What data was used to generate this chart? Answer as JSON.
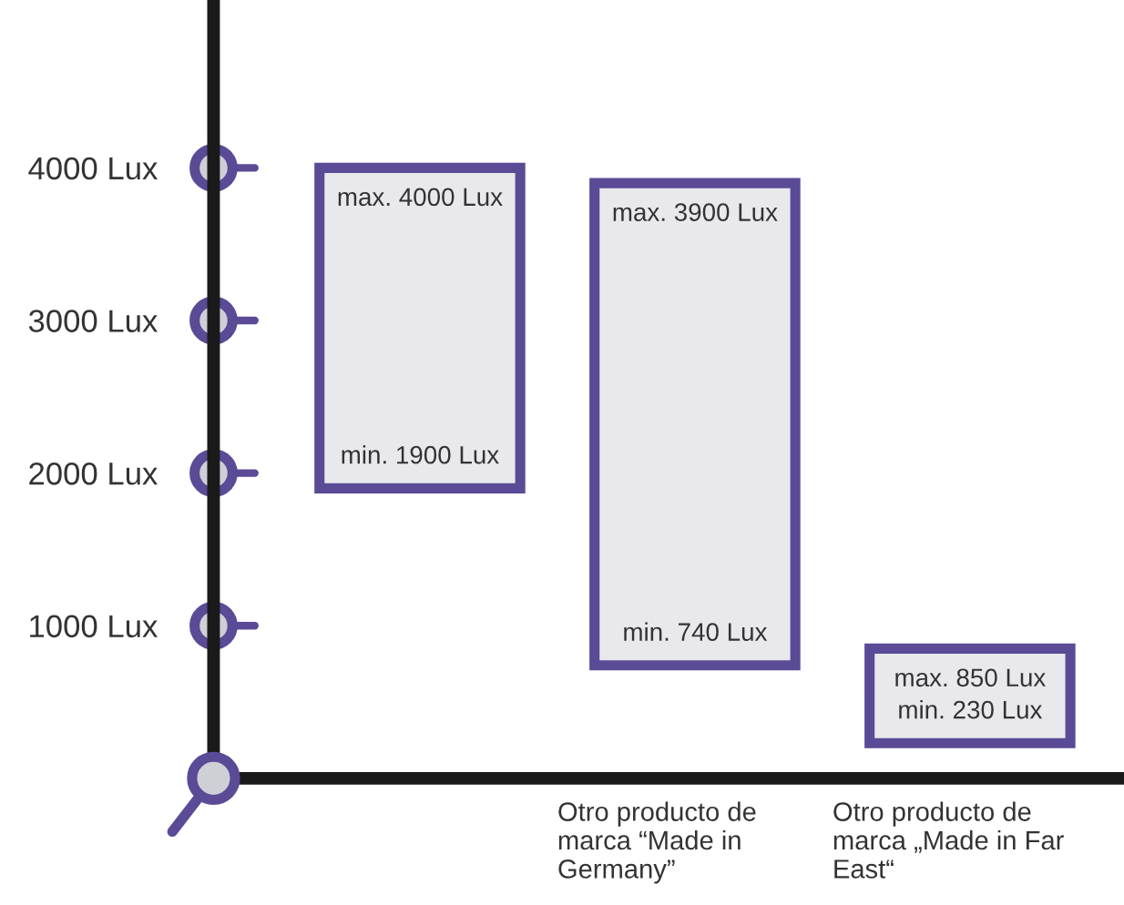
{
  "chart_data": {
    "type": "bar",
    "categories": [
      null,
      "Otro producto de\nmarca “Made in\nGermany”",
      "Otro producto de\nmarca „Made in Far\nEast“"
    ],
    "base": [
      1900,
      740,
      230
    ],
    "values": [
      2100,
      3160,
      620
    ],
    "color": "#e9e9ed",
    "ylim": [
      0,
      5100
    ],
    "yticks": [
      {
        "value": 1000,
        "label": "1000 Lux"
      },
      {
        "value": 2000,
        "label": "2000 Lux"
      },
      {
        "value": 3000,
        "label": "3000 Lux"
      },
      {
        "value": 4000,
        "label": "4000 Lux"
      }
    ],
    "annotations": [
      "max. 4000 Lux",
      "min. 1900 Lux",
      "max. 3900 Lux",
      "min. 740 Lux",
      "max. 850 Lux",
      "min. 230 Lux"
    ],
    "grid": false
  }
}
